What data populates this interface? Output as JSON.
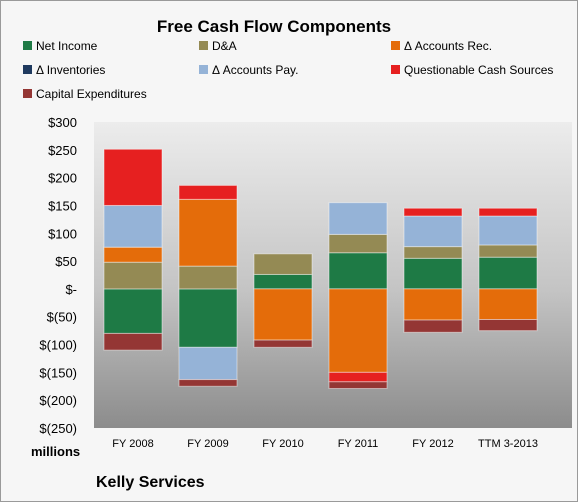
{
  "chart_data": {
    "type": "bar",
    "stacked": true,
    "title": "Free Cash Flow Components",
    "categories": [
      "FY 2008",
      "FY 2009",
      "FY 2010",
      "FY 2011",
      "FY 2012",
      "TTM 3-2013"
    ],
    "ylim": [
      -250,
      300
    ],
    "yticks": [
      300,
      250,
      200,
      150,
      100,
      50,
      0,
      -50,
      -100,
      -150,
      -200,
      -250
    ],
    "ytick_labels": [
      "$300",
      "$250",
      "$200",
      "$150",
      "$100",
      "$50",
      "$-",
      "$(50)",
      "$(100)",
      "$(150)",
      "$(200)",
      "$(250)"
    ],
    "units_label": "millions",
    "company": "Kelly Services",
    "legend_placement": "top",
    "grid": false,
    "series": [
      {
        "name": "Net Income",
        "color": "#1e7a45",
        "values": [
          -80,
          -105,
          26,
          65,
          55,
          57
        ]
      },
      {
        "name": "D&A",
        "color": "#948a54",
        "values": [
          48,
          41,
          37,
          33,
          21,
          22
        ]
      },
      {
        "name": "Δ Accounts Rec.",
        "color": "#e46c0a",
        "values": [
          27,
          120,
          0,
          0,
          0,
          0
        ]
      },
      {
        "name": "Δ Inventories",
        "color": "#1f3a5f",
        "values": [
          0,
          0,
          0,
          0,
          0,
          0
        ]
      },
      {
        "name": "Δ Accounts Pay.",
        "color": "#95b3d7",
        "values": [
          75,
          0,
          0,
          57,
          55,
          52
        ]
      },
      {
        "name": "Questionable Cash Sources",
        "color": "#e62020",
        "values": [
          101,
          25,
          0,
          0,
          14,
          14
        ]
      },
      {
        "name": "Capital Expenditures",
        "color": "#943634",
        "values": [
          -30,
          -12,
          -13,
          -12,
          -22,
          -20
        ]
      }
    ],
    "negatives": {
      "Δ Accounts Rec.": [
        0,
        0,
        -92,
        -150,
        -56,
        -55
      ],
      "Δ Accounts Pay.": [
        0,
        -58,
        0,
        0,
        0,
        0
      ],
      "Questionable Cash Sources": [
        0,
        0,
        0,
        -17,
        0,
        0
      ]
    }
  }
}
